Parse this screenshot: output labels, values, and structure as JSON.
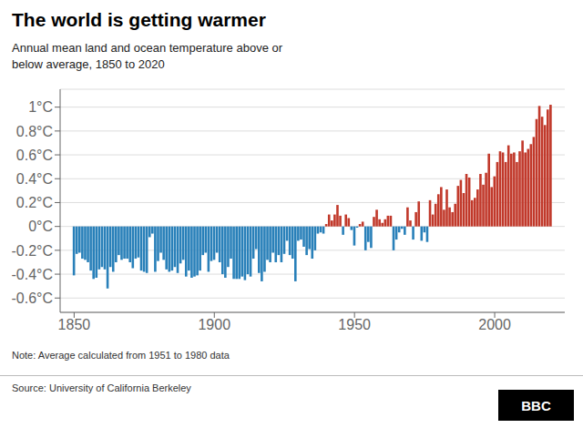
{
  "chart_data": {
    "type": "bar",
    "title": "The world is getting warmer",
    "subtitle": "Annual mean land and ocean temperature above or\nbelow average, 1850 to 2020",
    "annotations": [
      "Note: Average calculated from 1951 to 1980 data",
      "Source: University of California Berkeley",
      "BBC"
    ],
    "x": [
      1850,
      1851,
      1852,
      1853,
      1854,
      1855,
      1856,
      1857,
      1858,
      1859,
      1860,
      1861,
      1862,
      1863,
      1864,
      1865,
      1866,
      1867,
      1868,
      1869,
      1870,
      1871,
      1872,
      1873,
      1874,
      1875,
      1876,
      1877,
      1878,
      1879,
      1880,
      1881,
      1882,
      1883,
      1884,
      1885,
      1886,
      1887,
      1888,
      1889,
      1890,
      1891,
      1892,
      1893,
      1894,
      1895,
      1896,
      1897,
      1898,
      1899,
      1900,
      1901,
      1902,
      1903,
      1904,
      1905,
      1906,
      1907,
      1908,
      1909,
      1910,
      1911,
      1912,
      1913,
      1914,
      1915,
      1916,
      1917,
      1918,
      1919,
      1920,
      1921,
      1922,
      1923,
      1924,
      1925,
      1926,
      1927,
      1928,
      1929,
      1930,
      1931,
      1932,
      1933,
      1934,
      1935,
      1936,
      1937,
      1938,
      1939,
      1940,
      1941,
      1942,
      1943,
      1944,
      1945,
      1946,
      1947,
      1948,
      1949,
      1950,
      1951,
      1952,
      1953,
      1954,
      1955,
      1956,
      1957,
      1958,
      1959,
      1960,
      1961,
      1962,
      1963,
      1964,
      1965,
      1966,
      1967,
      1968,
      1969,
      1970,
      1971,
      1972,
      1973,
      1974,
      1975,
      1976,
      1977,
      1978,
      1979,
      1980,
      1981,
      1982,
      1983,
      1984,
      1985,
      1986,
      1987,
      1988,
      1989,
      1990,
      1991,
      1992,
      1993,
      1994,
      1995,
      1996,
      1997,
      1998,
      1999,
      2000,
      2001,
      2002,
      2003,
      2004,
      2005,
      2006,
      2007,
      2008,
      2009,
      2010,
      2011,
      2012,
      2013,
      2014,
      2015,
      2016,
      2017,
      2018,
      2019,
      2020
    ],
    "values": [
      -0.41,
      -0.23,
      -0.22,
      -0.27,
      -0.28,
      -0.3,
      -0.37,
      -0.44,
      -0.43,
      -0.36,
      -0.34,
      -0.36,
      -0.52,
      -0.34,
      -0.38,
      -0.3,
      -0.24,
      -0.28,
      -0.27,
      -0.27,
      -0.3,
      -0.35,
      -0.27,
      -0.26,
      -0.37,
      -0.38,
      -0.39,
      -0.09,
      -0.06,
      -0.38,
      -0.29,
      -0.22,
      -0.28,
      -0.36,
      -0.38,
      -0.37,
      -0.34,
      -0.39,
      -0.31,
      -0.28,
      -0.42,
      -0.37,
      -0.43,
      -0.42,
      -0.41,
      -0.37,
      -0.24,
      -0.22,
      -0.38,
      -0.29,
      -0.28,
      -0.22,
      -0.3,
      -0.4,
      -0.43,
      -0.34,
      -0.27,
      -0.44,
      -0.44,
      -0.44,
      -0.42,
      -0.45,
      -0.4,
      -0.42,
      -0.27,
      -0.19,
      -0.39,
      -0.46,
      -0.38,
      -0.28,
      -0.3,
      -0.22,
      -0.3,
      -0.24,
      -0.3,
      -0.23,
      -0.12,
      -0.24,
      -0.27,
      -0.46,
      -0.12,
      -0.11,
      -0.17,
      -0.24,
      -0.19,
      -0.27,
      -0.2,
      -0.06,
      -0.05,
      -0.06,
      0.02,
      0.1,
      0.05,
      0.1,
      0.18,
      0.09,
      -0.07,
      0.1,
      0.07,
      -0.03,
      -0.16,
      -0.01,
      0.02,
      0.04,
      -0.2,
      -0.13,
      -0.18,
      0.08,
      0.14,
      0.06,
      0.03,
      0.06,
      0.09,
      0.09,
      -0.2,
      -0.11,
      -0.05,
      -0.02,
      -0.07,
      0.16,
      0.05,
      -0.11,
      0.12,
      0.21,
      -0.12,
      -0.05,
      -0.13,
      0.22,
      0.1,
      0.19,
      0.27,
      0.33,
      0.14,
      0.31,
      0.16,
      0.12,
      0.19,
      0.34,
      0.39,
      0.28,
      0.44,
      0.41,
      0.22,
      0.24,
      0.31,
      0.44,
      0.35,
      0.45,
      0.61,
      0.33,
      0.42,
      0.54,
      0.63,
      0.62,
      0.54,
      0.68,
      0.61,
      0.62,
      0.54,
      0.63,
      0.72,
      0.62,
      0.65,
      0.69,
      0.75,
      0.9,
      1.01,
      0.92,
      0.85,
      0.98,
      1.02
    ],
    "colors": [
      "#2980b9",
      "#2980b9",
      "#2980b9",
      "#2980b9",
      "#2980b9",
      "#2980b9",
      "#2980b9",
      "#2980b9",
      "#2980b9",
      "#2980b9",
      "#2980b9",
      "#2980b9",
      "#2980b9",
      "#2980b9",
      "#2980b9",
      "#2980b9",
      "#2980b9",
      "#2980b9",
      "#2980b9",
      "#2980b9",
      "#2980b9",
      "#2980b9",
      "#2980b9",
      "#2980b9",
      "#2980b9",
      "#2980b9",
      "#2980b9",
      "#2980b9",
      "#2980b9",
      "#2980b9",
      "#2980b9",
      "#2980b9",
      "#2980b9",
      "#2980b9",
      "#2980b9",
      "#2980b9",
      "#2980b9",
      "#2980b9",
      "#2980b9",
      "#2980b9",
      "#2980b9",
      "#2980b9",
      "#2980b9",
      "#2980b9",
      "#2980b9",
      "#2980b9",
      "#2980b9",
      "#2980b9",
      "#2980b9",
      "#2980b9",
      "#2980b9",
      "#2980b9",
      "#2980b9",
      "#2980b9",
      "#2980b9",
      "#2980b9",
      "#2980b9",
      "#2980b9",
      "#2980b9",
      "#2980b9",
      "#2980b9",
      "#2980b9",
      "#2980b9",
      "#2980b9",
      "#2980b9",
      "#2980b9",
      "#2980b9",
      "#2980b9",
      "#2980b9",
      "#2980b9",
      "#2980b9",
      "#2980b9",
      "#2980b9",
      "#2980b9",
      "#2980b9",
      "#2980b9",
      "#2980b9",
      "#2980b9",
      "#2980b9",
      "#2980b9",
      "#2980b9",
      "#2980b9",
      "#2980b9",
      "#2980b9",
      "#2980b9",
      "#2980b9",
      "#2980b9",
      "#2980b9",
      "#2980b9",
      "#2980b9",
      "#c1392b",
      "#c1392b",
      "#c1392b",
      "#c1392b",
      "#c1392b",
      "#c1392b",
      "#2980b9",
      "#c1392b",
      "#c1392b",
      "#2980b9",
      "#2980b9",
      "#2980b9",
      "#c1392b",
      "#c1392b",
      "#2980b9",
      "#2980b9",
      "#2980b9",
      "#c1392b",
      "#c1392b",
      "#c1392b",
      "#c1392b",
      "#c1392b",
      "#c1392b",
      "#c1392b",
      "#2980b9",
      "#2980b9",
      "#2980b9",
      "#2980b9",
      "#2980b9",
      "#c1392b",
      "#c1392b",
      "#2980b9",
      "#c1392b",
      "#c1392b",
      "#2980b9",
      "#2980b9",
      "#2980b9",
      "#c1392b",
      "#c1392b",
      "#c1392b",
      "#c1392b",
      "#c1392b",
      "#c1392b",
      "#c1392b",
      "#c1392b",
      "#c1392b",
      "#c1392b",
      "#c1392b",
      "#c1392b",
      "#c1392b",
      "#c1392b",
      "#c1392b",
      "#c1392b",
      "#c1392b",
      "#c1392b",
      "#c1392b",
      "#c1392b",
      "#c1392b",
      "#c1392b",
      "#c1392b",
      "#c1392b",
      "#c1392b",
      "#c1392b",
      "#c1392b",
      "#c1392b",
      "#c1392b",
      "#c1392b",
      "#c1392b",
      "#c1392b",
      "#c1392b",
      "#c1392b",
      "#c1392b",
      "#c1392b",
      "#c1392b",
      "#c1392b",
      "#c1392b",
      "#c1392b",
      "#c1392b",
      "#c1392b",
      "#c1392b",
      "#c1392b"
    ],
    "xlim": [
      1845,
      2025
    ],
    "xticks": [
      1850,
      1900,
      1950,
      2000
    ],
    "ylim": [
      -0.72,
      1.15
    ],
    "yticks": [
      {
        "value": -0.6,
        "label": "-0.6°C"
      },
      {
        "value": -0.4,
        "label": "-0.4°C"
      },
      {
        "value": -0.2,
        "label": "-0.2°C"
      },
      {
        "value": 0.0,
        "label": "0°C"
      },
      {
        "value": 0.2,
        "label": "0.2°C"
      },
      {
        "value": 0.4,
        "label": "0.4°C"
      },
      {
        "value": 0.6,
        "label": "0.6°C"
      },
      {
        "value": 0.8,
        "label": "0.8°C"
      },
      {
        "value": 1.0,
        "label": "1°C"
      }
    ],
    "grid": true
  }
}
